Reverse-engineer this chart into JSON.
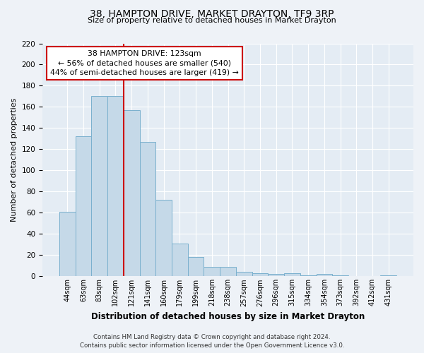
{
  "title": "38, HAMPTON DRIVE, MARKET DRAYTON, TF9 3RP",
  "subtitle": "Size of property relative to detached houses in Market Drayton",
  "xlabel": "Distribution of detached houses by size in Market Drayton",
  "ylabel": "Number of detached properties",
  "bar_labels": [
    "44sqm",
    "63sqm",
    "83sqm",
    "102sqm",
    "121sqm",
    "141sqm",
    "160sqm",
    "179sqm",
    "199sqm",
    "218sqm",
    "238sqm",
    "257sqm",
    "276sqm",
    "296sqm",
    "315sqm",
    "334sqm",
    "354sqm",
    "373sqm",
    "392sqm",
    "412sqm",
    "431sqm"
  ],
  "bar_values": [
    61,
    132,
    170,
    170,
    157,
    127,
    72,
    31,
    18,
    9,
    9,
    4,
    3,
    2,
    3,
    1,
    2,
    1,
    0,
    0,
    1
  ],
  "bar_color": "#c5d9e8",
  "bar_edge_color": "#7ab0ce",
  "vline_x_index": 4,
  "vline_color": "#cc0000",
  "annotation_title": "38 HAMPTON DRIVE: 123sqm",
  "annotation_line1": "← 56% of detached houses are smaller (540)",
  "annotation_line2": "44% of semi-detached houses are larger (419) →",
  "annotation_box_color": "#ffffff",
  "annotation_box_edge_color": "#cc0000",
  "ylim": [
    0,
    220
  ],
  "yticks": [
    0,
    20,
    40,
    60,
    80,
    100,
    120,
    140,
    160,
    180,
    200,
    220
  ],
  "footer_line1": "Contains HM Land Registry data © Crown copyright and database right 2024.",
  "footer_line2": "Contains public sector information licensed under the Open Government Licence v3.0.",
  "bg_color": "#eef2f7",
  "plot_bg_color": "#e4ecf4"
}
